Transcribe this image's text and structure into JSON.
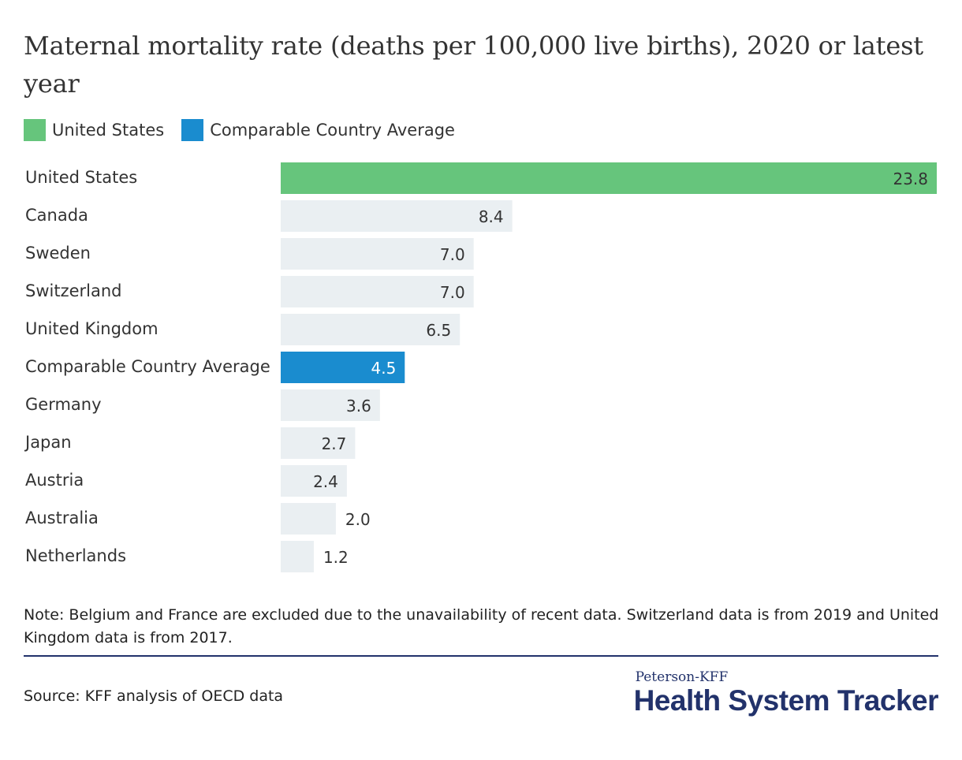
{
  "title": "Maternal mortality rate (deaths per 100,000 live births), 2020 or latest year",
  "legend": [
    {
      "label": "United States",
      "color": "#66c57c"
    },
    {
      "label": "Comparable Country Average",
      "color": "#1a8ccf"
    }
  ],
  "chart_data": {
    "type": "bar",
    "orientation": "horizontal",
    "categories": [
      "United States",
      "Canada",
      "Sweden",
      "Switzerland",
      "United Kingdom",
      "Comparable Country Average",
      "Germany",
      "Japan",
      "Austria",
      "Australia",
      "Netherlands"
    ],
    "values": [
      23.8,
      8.4,
      7.0,
      7.0,
      6.5,
      4.5,
      3.6,
      2.7,
      2.4,
      2.0,
      1.2
    ],
    "value_labels": [
      "23.8",
      "8.4",
      "7.0",
      "7.0",
      "6.5",
      "4.5",
      "3.6",
      "2.7",
      "2.4",
      "2.0",
      "1.2"
    ],
    "colors": {
      "highlight_us": "#66c57c",
      "highlight_avg": "#1a8ccf",
      "default": "#eaeff2"
    },
    "xlim": [
      0,
      23.8
    ],
    "grid": false
  },
  "note": "Note: Belgium and France are excluded due to the unavailability of recent data. Switzerland data is from 2019 and United Kingdom data is from 2017.",
  "source": "Source: KFF analysis of OECD data",
  "brand": {
    "small": "Peterson-KFF",
    "big": "Health System Tracker"
  }
}
